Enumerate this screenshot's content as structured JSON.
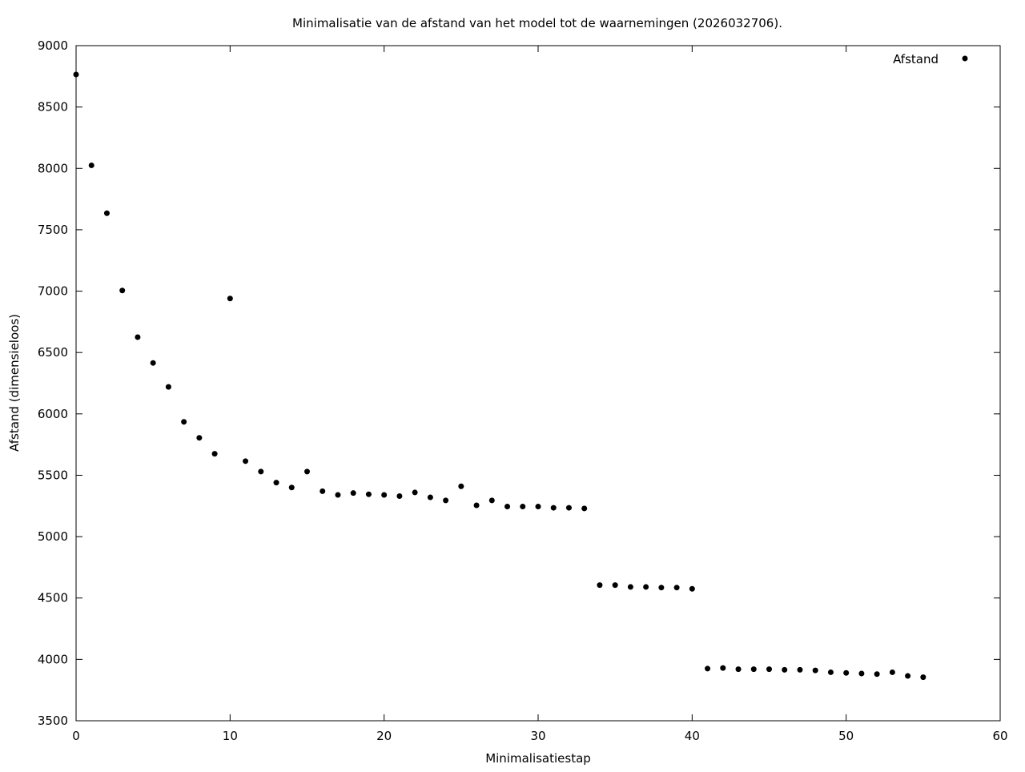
{
  "chart_data": {
    "type": "scatter",
    "title": "Minimalisatie van de afstand van het model tot de waarnemingen (2026032706).",
    "xlabel": "Minimalisatiestap",
    "ylabel": "Afstand (dimensieloos)",
    "xlim": [
      0,
      60
    ],
    "ylim": [
      3500,
      9000
    ],
    "xticks": [
      0,
      10,
      20,
      30,
      40,
      50,
      60
    ],
    "yticks": [
      3500,
      4000,
      4500,
      5000,
      5500,
      6000,
      6500,
      7000,
      7500,
      8000,
      8500,
      9000
    ],
    "grid": false,
    "legend_position": "top-right",
    "series": [
      {
        "name": "Afstand",
        "color": "#000000",
        "marker": "circle",
        "x": [
          0,
          1,
          2,
          3,
          4,
          5,
          6,
          7,
          8,
          9,
          10,
          11,
          12,
          13,
          14,
          15,
          16,
          17,
          18,
          19,
          20,
          21,
          22,
          23,
          24,
          25,
          26,
          27,
          28,
          29,
          30,
          31,
          32,
          33,
          34,
          35,
          36,
          37,
          38,
          39,
          40,
          41,
          42,
          43,
          44,
          45,
          46,
          47,
          48,
          49,
          50,
          51,
          52,
          53,
          54,
          55
        ],
        "y": [
          8765,
          8025,
          7635,
          7005,
          6625,
          6415,
          6220,
          5935,
          5805,
          5675,
          6940,
          5615,
          5530,
          5440,
          5400,
          5530,
          5370,
          5340,
          5355,
          5345,
          5340,
          5330,
          5360,
          5320,
          5295,
          5410,
          5255,
          5295,
          5245,
          5245,
          5245,
          5235,
          5235,
          5230,
          4605,
          4605,
          4590,
          4590,
          4585,
          4585,
          4575,
          3925,
          3930,
          3920,
          3920,
          3920,
          3915,
          3915,
          3910,
          3895,
          3890,
          3885,
          3880,
          3895,
          3865,
          3855
        ]
      }
    ]
  }
}
